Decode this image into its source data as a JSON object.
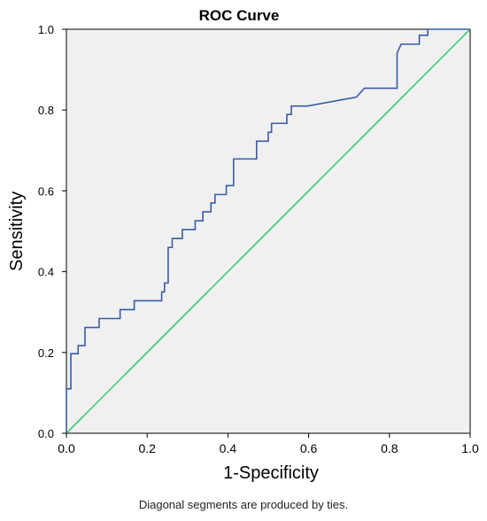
{
  "chart_data": {
    "type": "line",
    "title": "ROC Curve",
    "xlabel": "1-Specificity",
    "ylabel": "Sensitivity",
    "xlim": [
      0,
      1
    ],
    "ylim": [
      0,
      1
    ],
    "xticks": [
      {
        "value": 0.0,
        "label": "0.0"
      },
      {
        "value": 0.2,
        "label": "0.2"
      },
      {
        "value": 0.4,
        "label": "0.4"
      },
      {
        "value": 0.6,
        "label": "0.6"
      },
      {
        "value": 0.8,
        "label": "0.8"
      },
      {
        "value": 1.0,
        "label": "1.0"
      }
    ],
    "yticks": [
      {
        "value": 0.0,
        "label": "0.0"
      },
      {
        "value": 0.2,
        "label": "0.2"
      },
      {
        "value": 0.4,
        "label": "0.4"
      },
      {
        "value": 0.6,
        "label": "0.6"
      },
      {
        "value": 0.8,
        "label": "0.8"
      },
      {
        "value": 1.0,
        "label": "1.0"
      }
    ],
    "grid": false,
    "legend": "none",
    "plot_background": "#f0f0f0",
    "series": [
      {
        "color": "#3a5ba6",
        "x": [
          0,
          0,
          0.011,
          0.011,
          0.029,
          0.029,
          0.046,
          0.046,
          0.081,
          0.081,
          0.133,
          0.133,
          0.168,
          0.168,
          0.236,
          0.236,
          0.243,
          0.243,
          0.252,
          0.252,
          0.262,
          0.262,
          0.287,
          0.287,
          0.319,
          0.319,
          0.338,
          0.338,
          0.358,
          0.358,
          0.368,
          0.368,
          0.396,
          0.396,
          0.414,
          0.414,
          0.471,
          0.471,
          0.5,
          0.5,
          0.508,
          0.508,
          0.546,
          0.546,
          0.557,
          0.557,
          0.597,
          0.597,
          0.718,
          0.738,
          0.748,
          0.819,
          0.819,
          0.829,
          0.829,
          0.874,
          0.874,
          0.895,
          0.895,
          0.91,
          0.91,
          1.0
        ],
        "y": [
          0,
          0.11,
          0.11,
          0.197,
          0.197,
          0.217,
          0.217,
          0.262,
          0.262,
          0.284,
          0.284,
          0.306,
          0.306,
          0.328,
          0.328,
          0.35,
          0.35,
          0.372,
          0.372,
          0.46,
          0.46,
          0.482,
          0.482,
          0.504,
          0.504,
          0.526,
          0.526,
          0.548,
          0.548,
          0.57,
          0.57,
          0.591,
          0.591,
          0.613,
          0.613,
          0.679,
          0.679,
          0.723,
          0.723,
          0.745,
          0.745,
          0.767,
          0.767,
          0.789,
          0.789,
          0.81,
          0.81,
          0.81,
          0.832,
          0.854,
          0.854,
          0.854,
          0.941,
          0.963,
          0.963,
          0.963,
          0.985,
          0.985,
          1.0,
          1.0,
          1.0,
          1.0
        ]
      },
      {
        "color": "#2ec46e",
        "x": [
          0,
          1
        ],
        "y": [
          0,
          1
        ]
      }
    ]
  },
  "caption": "Diagonal segments are produced by ties."
}
